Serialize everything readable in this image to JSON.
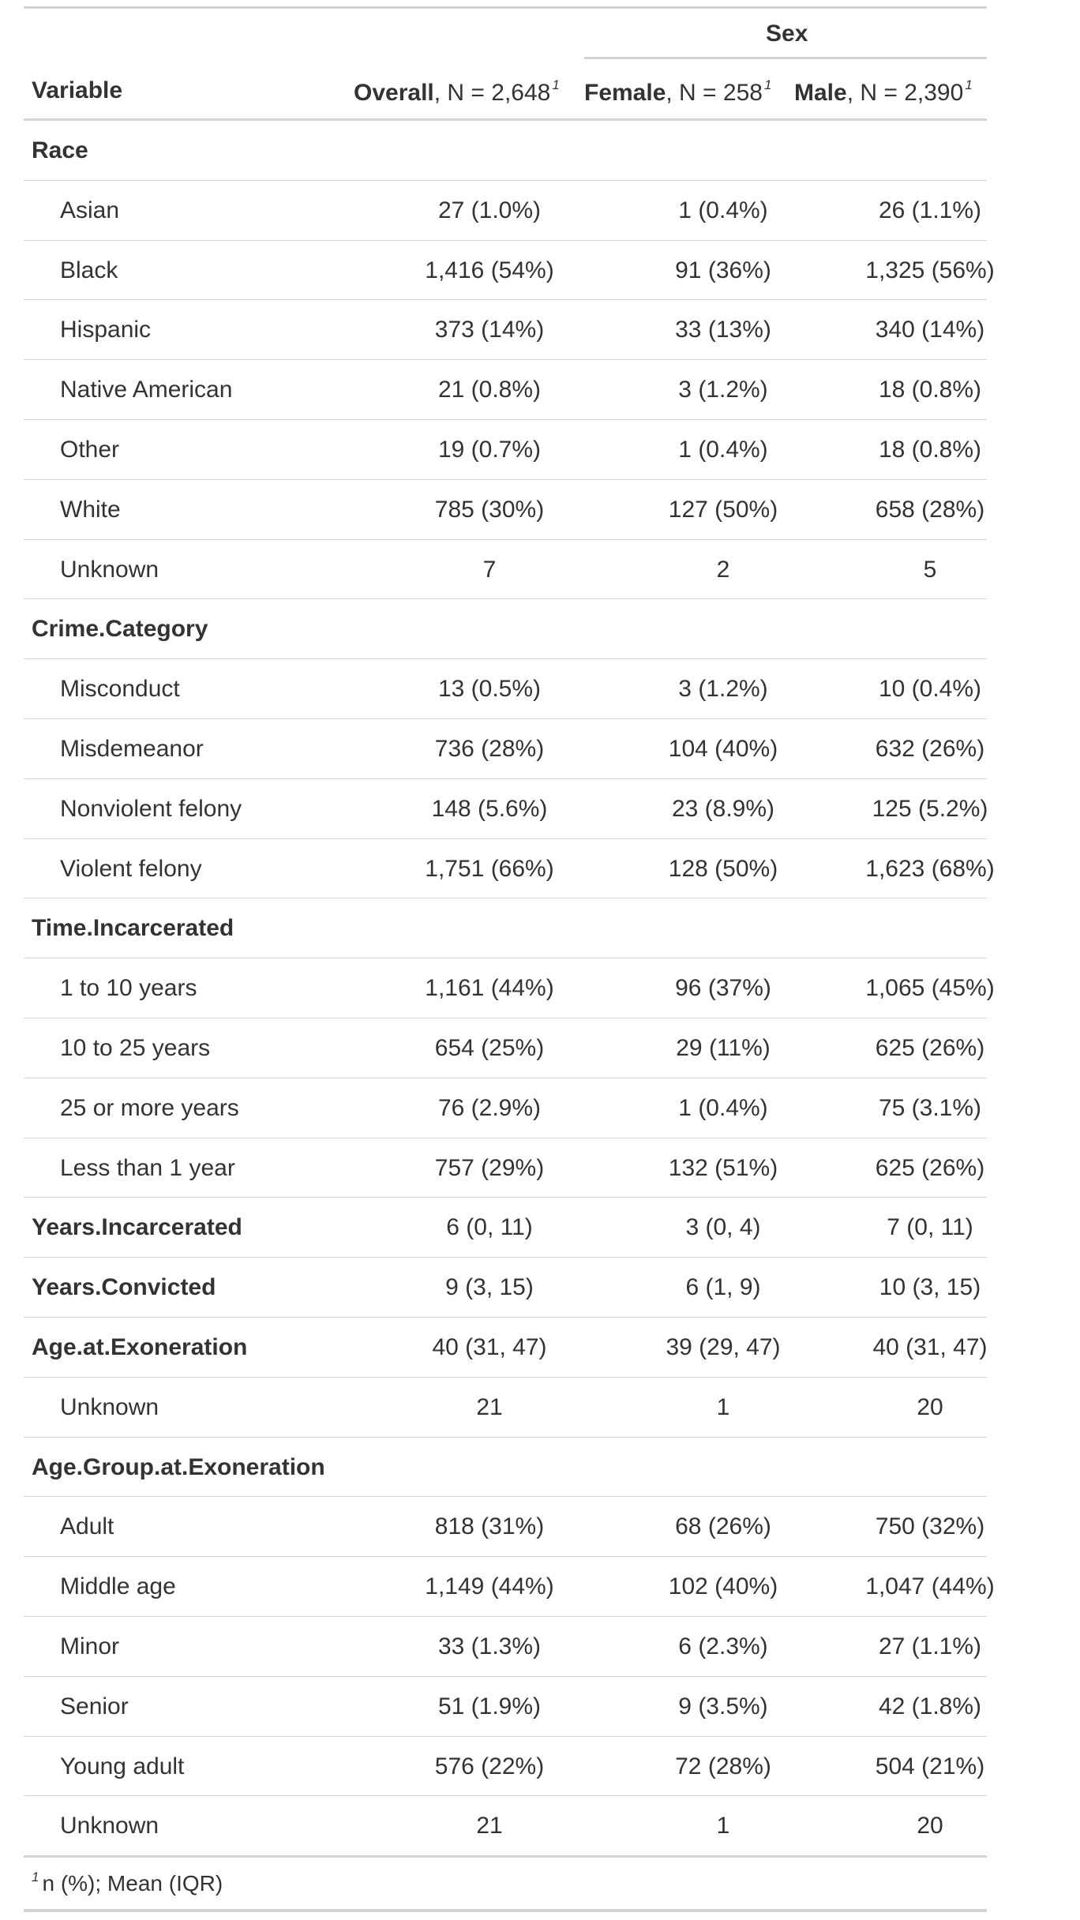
{
  "header": {
    "spanner": "Sex",
    "variable": "Variable",
    "overall": {
      "bold": "Overall",
      "rest": ", N = 2,648",
      "mark": "1"
    },
    "female": {
      "bold": "Female",
      "rest": ", N = 258",
      "mark": "1"
    },
    "male": {
      "bold": "Male",
      "rest": ", N = 2,390",
      "mark": "1"
    }
  },
  "rows": [
    {
      "label": "Race",
      "type": "group",
      "values": [
        "",
        "",
        ""
      ]
    },
    {
      "label": "Asian",
      "type": "level",
      "values": [
        "27 (1.0%)",
        "1 (0.4%)",
        "26 (1.1%)"
      ]
    },
    {
      "label": "Black",
      "type": "level",
      "values": [
        "1,416 (54%)",
        "91 (36%)",
        "1,325 (56%)"
      ]
    },
    {
      "label": "Hispanic",
      "type": "level",
      "values": [
        "373 (14%)",
        "33 (13%)",
        "340 (14%)"
      ]
    },
    {
      "label": "Native American",
      "type": "level",
      "values": [
        "21 (0.8%)",
        "3 (1.2%)",
        "18 (0.8%)"
      ]
    },
    {
      "label": "Other",
      "type": "level",
      "values": [
        "19 (0.7%)",
        "1 (0.4%)",
        "18 (0.8%)"
      ]
    },
    {
      "label": "White",
      "type": "level",
      "values": [
        "785 (30%)",
        "127 (50%)",
        "658 (28%)"
      ]
    },
    {
      "label": "Unknown",
      "type": "level",
      "values": [
        "7",
        "2",
        "5"
      ]
    },
    {
      "label": "Crime.Category",
      "type": "group",
      "values": [
        "",
        "",
        ""
      ]
    },
    {
      "label": "Misconduct",
      "type": "level",
      "values": [
        "13 (0.5%)",
        "3 (1.2%)",
        "10 (0.4%)"
      ]
    },
    {
      "label": "Misdemeanor",
      "type": "level",
      "values": [
        "736 (28%)",
        "104 (40%)",
        "632 (26%)"
      ]
    },
    {
      "label": "Nonviolent felony",
      "type": "level",
      "values": [
        "148 (5.6%)",
        "23 (8.9%)",
        "125 (5.2%)"
      ]
    },
    {
      "label": "Violent felony",
      "type": "level",
      "values": [
        "1,751 (66%)",
        "128 (50%)",
        "1,623 (68%)"
      ]
    },
    {
      "label": "Time.Incarcerated",
      "type": "group",
      "values": [
        "",
        "",
        ""
      ]
    },
    {
      "label": "1 to 10 years",
      "type": "level",
      "values": [
        "1,161 (44%)",
        "96 (37%)",
        "1,065 (45%)"
      ]
    },
    {
      "label": "10 to 25 years",
      "type": "level",
      "values": [
        "654 (25%)",
        "29 (11%)",
        "625 (26%)"
      ]
    },
    {
      "label": "25 or more years",
      "type": "level",
      "values": [
        "76 (2.9%)",
        "1 (0.4%)",
        "75 (3.1%)"
      ]
    },
    {
      "label": "Less than 1 year",
      "type": "level",
      "values": [
        "757 (29%)",
        "132 (51%)",
        "625 (26%)"
      ]
    },
    {
      "label": "Years.Incarcerated",
      "type": "group",
      "values": [
        "6 (0, 11)",
        "3 (0, 4)",
        "7 (0, 11)"
      ]
    },
    {
      "label": "Years.Convicted",
      "type": "group",
      "values": [
        "9 (3, 15)",
        "6 (1, 9)",
        "10 (3, 15)"
      ]
    },
    {
      "label": "Age.at.Exoneration",
      "type": "group",
      "values": [
        "40 (31, 47)",
        "39 (29, 47)",
        "40 (31, 47)"
      ]
    },
    {
      "label": "Unknown",
      "type": "level",
      "values": [
        "21",
        "1",
        "20"
      ]
    },
    {
      "label": "Age.Group.at.Exoneration",
      "type": "group",
      "values": [
        "",
        "",
        ""
      ]
    },
    {
      "label": "Adult",
      "type": "level",
      "values": [
        "818 (31%)",
        "68 (26%)",
        "750 (32%)"
      ]
    },
    {
      "label": "Middle age",
      "type": "level",
      "values": [
        "1,149 (44%)",
        "102 (40%)",
        "1,047 (44%)"
      ]
    },
    {
      "label": "Minor",
      "type": "level",
      "values": [
        "33 (1.3%)",
        "6 (2.3%)",
        "27 (1.1%)"
      ]
    },
    {
      "label": "Senior",
      "type": "level",
      "values": [
        "51 (1.9%)",
        "9 (3.5%)",
        "42 (1.8%)"
      ]
    },
    {
      "label": "Young adult",
      "type": "level",
      "values": [
        "576 (22%)",
        "72 (28%)",
        "504 (21%)"
      ]
    },
    {
      "label": "Unknown",
      "type": "level",
      "values": [
        "21",
        "1",
        "20"
      ]
    }
  ],
  "footnote": {
    "mark": "1",
    "text": "n (%); Mean (IQR)"
  }
}
